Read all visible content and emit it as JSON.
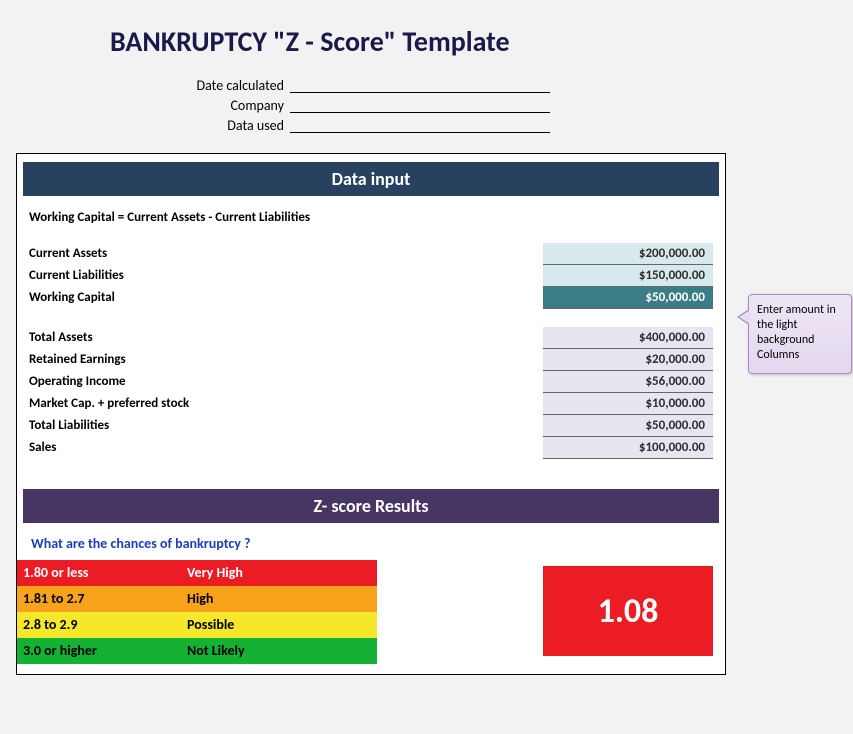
{
  "title": "BANKRUPTCY \"Z - Score\" Template",
  "meta": {
    "date_label": "Date calculated",
    "company_label": "Company",
    "data_used_label": "Data used",
    "date_value": "",
    "company_value": "",
    "data_used_value": ""
  },
  "bands": {
    "data_input": "Data input",
    "results": "Z- score Results"
  },
  "formula_note": "Working Capital  = Current Assets - Current Liabilities",
  "inputs": {
    "current_assets": {
      "label": "Current Assets",
      "value": "$200,000.00",
      "style": "input"
    },
    "current_liabilities": {
      "label": "Current Liabilities",
      "value": "$150,000.00",
      "style": "input"
    },
    "working_capital": {
      "label": "Working Capital",
      "value": "$50,000.00",
      "style": "result"
    },
    "total_assets": {
      "label": "Total Assets",
      "value": "$400,000.00",
      "style": "plain"
    },
    "retained_earnings": {
      "label": "Retained Earnings",
      "value": "$20,000.00",
      "style": "plain"
    },
    "operating_income": {
      "label": "Operating Income",
      "value": "$56,000.00",
      "style": "plain"
    },
    "market_cap": {
      "label": "Market Cap. + preferred stock",
      "value": "$10,000.00",
      "style": "plain"
    },
    "total_liabilities": {
      "label": "Total Liabilities",
      "value": "$50,000.00",
      "style": "plain"
    },
    "sales": {
      "label": "Sales",
      "value": "$100,000.00",
      "style": "plain"
    }
  },
  "results": {
    "question": "What are the chances of bankruptcy ?",
    "legend": [
      {
        "range": "1.80 or less",
        "text": "Very High",
        "bg": "#ec1c24",
        "fg": "#ffffff"
      },
      {
        "range": "1.81 to  2.7",
        "text": "High",
        "bg": "#f7a31c",
        "fg": "#000000"
      },
      {
        "range": "2.8 to 2.9",
        "text": "Possible",
        "bg": "#f5e72a",
        "fg": "#000000"
      },
      {
        "range": "3.0 or higher",
        "text": "Not Likely",
        "bg": "#15b135",
        "fg": "#000000"
      }
    ],
    "score": "1.08",
    "score_bg": "#ec1c24",
    "score_fg": "#ffffff"
  },
  "callout": "Enter amount in the light background Columns",
  "colors": {
    "title": "#1a1a4a",
    "band_data_input": "#27415f",
    "band_results": "#473563",
    "cell_input_bg": "#d7e9ec",
    "cell_result_bg": "#3a7d87",
    "cell_plain_bg": "#e8e5f0",
    "question": "#1b3eb4",
    "callout_bg": "#e7ddf1",
    "callout_border": "#a68cc2"
  }
}
